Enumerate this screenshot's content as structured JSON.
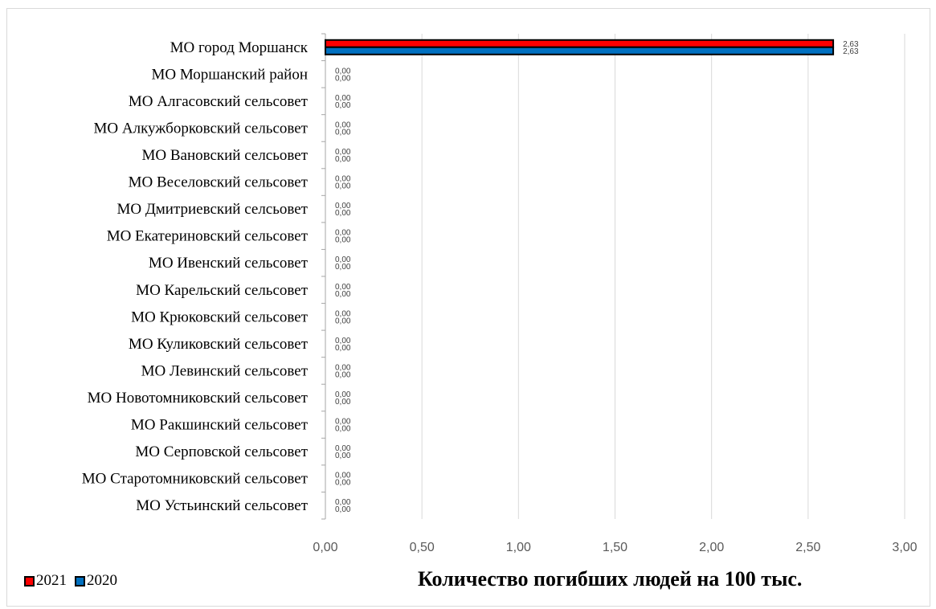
{
  "chart_data": {
    "type": "bar",
    "orientation": "horizontal",
    "categories": [
      "МО город Моршанск",
      "МО Моршанский район",
      "МО Алгасовский сельсовет",
      "МО Алкужборковский сельсовет",
      "МО Вановский селсьовет",
      "МО Веселовский сельсовет",
      "МО Дмитриевский селсьовет",
      "МО Екатериновский сельсовет",
      "МО Ивенский сельсовет",
      "МО Карельский сельсовет",
      "МО Крюковский сельсовет",
      "МО Куликовский сельсовет",
      "МО Левинский сельсовет",
      "МО Новотомниковский сельсовет",
      "МО Ракшинский сельсовет",
      "МО Серповской сельсовет",
      "МО Старотомниковский сельсовет",
      "МО Устьинский сельсовет"
    ],
    "series": [
      {
        "name": "2021",
        "color": "#ff0000",
        "values": [
          2.63,
          0,
          0,
          0,
          0,
          0,
          0,
          0,
          0,
          0,
          0,
          0,
          0,
          0,
          0,
          0,
          0,
          0
        ],
        "labels": [
          "2,63",
          "0,00",
          "0,00",
          "0,00",
          "0,00",
          "0,00",
          "0,00",
          "0,00",
          "0,00",
          "0,00",
          "0,00",
          "0,00",
          "0,00",
          "0,00",
          "0,00",
          "0,00",
          "0,00",
          "0,00"
        ]
      },
      {
        "name": "2020",
        "color": "#0070c0",
        "values": [
          2.63,
          0,
          0,
          0,
          0,
          0,
          0,
          0,
          0,
          0,
          0,
          0,
          0,
          0,
          0,
          0,
          0,
          0
        ],
        "labels": [
          "2,63",
          "0,00",
          "0,00",
          "0,00",
          "0,00",
          "0,00",
          "0,00",
          "0,00",
          "0,00",
          "0,00",
          "0,00",
          "0,00",
          "0,00",
          "0,00",
          "0,00",
          "0,00",
          "0,00",
          "0,00"
        ]
      }
    ],
    "xlim": [
      0,
      3
    ],
    "x_ticks": [
      0,
      0.5,
      1,
      1.5,
      2,
      2.5,
      3
    ],
    "x_tick_labels": [
      "0,00",
      "0,50",
      "1,00",
      "1,50",
      "2,00",
      "2,50",
      "3,00"
    ],
    "xlabel": "Количество погибших людей на 100 тыс.",
    "grid": "vertical",
    "legend": {
      "position": "bottom-left",
      "entries": [
        "2021",
        "2020"
      ]
    }
  }
}
